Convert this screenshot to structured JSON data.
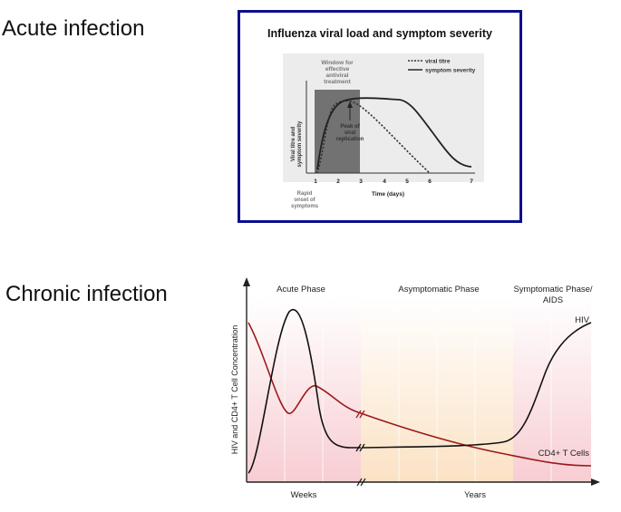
{
  "labels": {
    "acute": "Acute infection",
    "chronic": "Chronic infection"
  },
  "flu_chart": {
    "title": "Influenza viral load and symptom severity",
    "window_label": [
      "Window for",
      "effective",
      "antiviral",
      "treatment"
    ],
    "peak_label": [
      "Peak of",
      "viral",
      "replication"
    ],
    "onset_label": [
      "Rapid",
      "onset of",
      "symptoms"
    ],
    "ylabel_lines": [
      "Viral titre and",
      "symptom severity"
    ],
    "xlabel": "Time (days)",
    "x_ticks": [
      "1",
      "2",
      "3",
      "4",
      "5",
      "6",
      "7"
    ],
    "legend": {
      "viral": "viral titre",
      "symptom": "symptom severity"
    },
    "colors": {
      "border": "#0b0f8c",
      "window": "#6e6e6e",
      "inner_bg": "#e9e9e9"
    }
  },
  "hiv_chart": {
    "phase_labels": {
      "acute": "Acute Phase",
      "asymptomatic": "Asymptomatic Phase",
      "symptomatic": [
        "Symptomatic Phase/",
        "AIDS"
      ]
    },
    "ylabel": "HIV and CD4+ T Cell Concentration",
    "x_labels": {
      "weeks": "Weeks",
      "years": "Years"
    },
    "series_labels": {
      "hiv": "HIV",
      "cd4": "CD4+ T Cells"
    },
    "colors": {
      "hiv": "#111111",
      "cd4": "#9b1b1b",
      "acute_bg": "#f9d9dd",
      "asym_bg": "#fbe9d2",
      "symp_bg": "#f9d9dd"
    }
  }
}
